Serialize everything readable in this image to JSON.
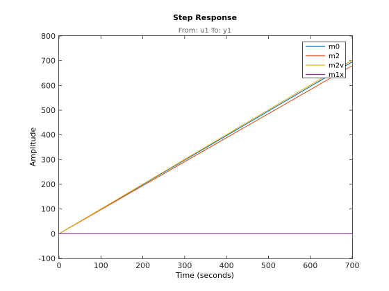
{
  "chart_data": {
    "type": "line",
    "title": "Step Response",
    "subtitle": "From: u1  To: y1",
    "xlabel": "Time (seconds)",
    "ylabel": "Amplitude",
    "xlim": [
      0,
      700
    ],
    "ylim": [
      -100,
      800
    ],
    "xticks": [
      0,
      100,
      200,
      300,
      400,
      500,
      600,
      700
    ],
    "yticks": [
      -100,
      0,
      100,
      200,
      300,
      400,
      500,
      600,
      700,
      800
    ],
    "grid": false,
    "legend_position": "top-right",
    "series": [
      {
        "name": "m0",
        "color": "#0072bd",
        "x": [
          0,
          700
        ],
        "y": [
          0,
          695
        ]
      },
      {
        "name": "m2",
        "color": "#d95319",
        "x": [
          0,
          700
        ],
        "y": [
          0,
          680
        ]
      },
      {
        "name": "m2v",
        "color": "#edb120",
        "x": [
          0,
          700
        ],
        "y": [
          0,
          702
        ]
      },
      {
        "name": "m1x",
        "color": "#7e2f8e",
        "x": [
          0,
          700
        ],
        "y": [
          0,
          0
        ]
      }
    ]
  }
}
